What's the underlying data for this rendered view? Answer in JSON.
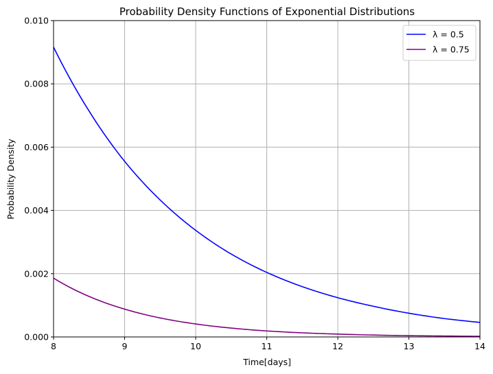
{
  "chart_data": {
    "type": "line",
    "title": "Probability Density Functions of Exponential Distributions",
    "xlabel": "Time[days]",
    "ylabel": "Probability Density",
    "xlim": [
      8,
      14
    ],
    "ylim": [
      0,
      0.01
    ],
    "grid": true,
    "legend_position": "top-right",
    "x_ticks": [
      "8",
      "9",
      "10",
      "11",
      "12",
      "13",
      "14"
    ],
    "y_ticks": [
      "0.000",
      "0.002",
      "0.004",
      "0.006",
      "0.008",
      "0.010"
    ],
    "x": [
      8,
      8.5,
      9,
      9.5,
      10,
      10.5,
      11,
      11.5,
      12,
      12.5,
      13,
      13.5,
      14
    ],
    "series": [
      {
        "name": "λ = 0.5",
        "color": "#0000ff",
        "values": [
          0.00916,
          0.00714,
          0.00555,
          0.00433,
          0.00337,
          0.00262,
          0.00204,
          0.00159,
          0.00124,
          0.00097,
          0.00075,
          0.00058,
          0.00046
        ]
      },
      {
        "name": "λ = 0.75",
        "color": "#800080",
        "values": [
          0.00186,
          0.00128,
          0.00088,
          0.0006,
          0.00041,
          0.00028,
          0.00019,
          0.00013,
          9e-05,
          6e-05,
          4e-05,
          3e-05,
          2e-05
        ]
      }
    ]
  }
}
